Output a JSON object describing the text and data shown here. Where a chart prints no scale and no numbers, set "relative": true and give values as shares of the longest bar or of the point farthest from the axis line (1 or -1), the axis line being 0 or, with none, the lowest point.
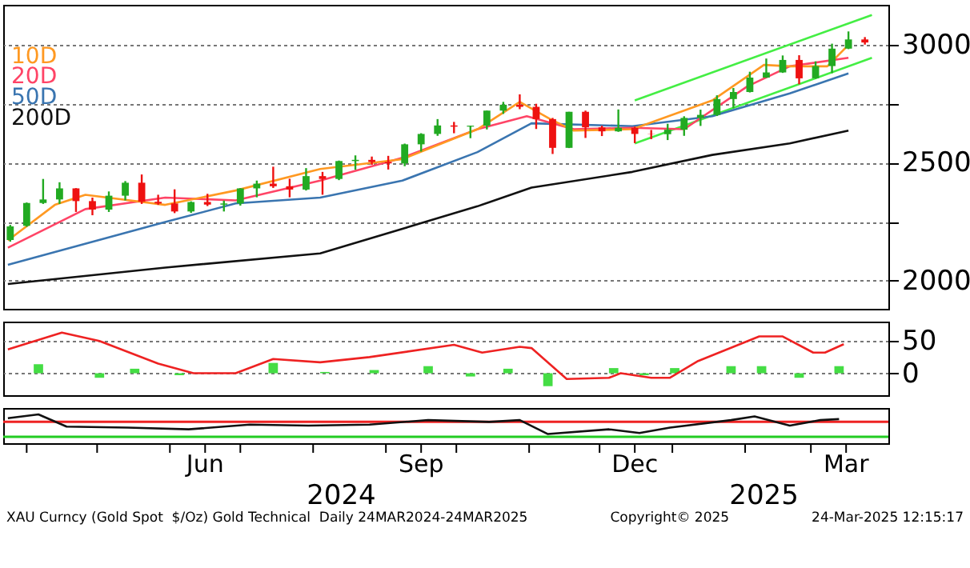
{
  "chart_data": [
    {
      "type": "candlestick",
      "xlim": [
        "2024-03-22",
        "2025-04-03"
      ],
      "ylim": [
        1880,
        3170
      ],
      "yticks": [
        2000,
        {
          "value": 2250,
          "label": null
        },
        2500,
        {
          "value": 2750,
          "label": null
        },
        3000
      ],
      "grid": "y",
      "tick_labels": "y",
      "x": [
        "2024-03-25",
        "2024-04-01",
        "2024-04-08",
        "2024-04-15",
        "2024-04-22",
        "2024-04-29",
        "2024-05-06",
        "2024-05-13",
        "2024-05-20",
        "2024-05-27",
        "2024-06-03",
        "2024-06-10",
        "2024-06-17",
        "2024-06-24",
        "2024-07-01",
        "2024-07-08",
        "2024-07-15",
        "2024-07-22",
        "2024-07-29",
        "2024-08-05",
        "2024-08-12",
        "2024-08-19",
        "2024-08-26",
        "2024-09-02",
        "2024-09-09",
        "2024-09-16",
        "2024-09-23",
        "2024-09-30",
        "2024-10-07",
        "2024-10-14",
        "2024-10-21",
        "2024-10-28",
        "2024-11-04",
        "2024-11-11",
        "2024-11-18",
        "2024-11-25",
        "2024-12-02",
        "2024-12-09",
        "2024-12-16",
        "2024-12-23",
        "2024-12-30",
        "2025-01-06",
        "2025-01-13",
        "2025-01-20",
        "2025-01-27",
        "2025-02-03",
        "2025-02-10",
        "2025-02-17",
        "2025-02-24",
        "2025-03-03",
        "2025-03-10",
        "2025-03-17",
        "2025-03-24"
      ],
      "ohlc": [
        [
          2172,
          2236,
          2165,
          2230
        ],
        [
          2232,
          2331,
          2228,
          2329
        ],
        [
          2329,
          2431,
          2325,
          2344
        ],
        [
          2344,
          2417,
          2325,
          2391
        ],
        [
          2391,
          2392,
          2291,
          2337
        ],
        [
          2337,
          2352,
          2277,
          2301
        ],
        [
          2301,
          2378,
          2291,
          2360
        ],
        [
          2360,
          2422,
          2340,
          2415
        ],
        [
          2415,
          2450,
          2325,
          2334
        ],
        [
          2334,
          2364,
          2321,
          2327
        ],
        [
          2327,
          2387,
          2286,
          2293
        ],
        [
          2293,
          2336,
          2287,
          2333
        ],
        [
          2333,
          2368,
          2316,
          2322
        ],
        [
          2322,
          2339,
          2293,
          2327
        ],
        [
          2327,
          2392,
          2318,
          2391
        ],
        [
          2391,
          2424,
          2353,
          2411
        ],
        [
          2411,
          2483,
          2393,
          2400
        ],
        [
          2400,
          2432,
          2353,
          2386
        ],
        [
          2386,
          2477,
          2382,
          2443
        ],
        [
          2443,
          2461,
          2364,
          2431
        ],
        [
          2431,
          2509,
          2426,
          2507
        ],
        [
          2507,
          2531,
          2470,
          2512
        ],
        [
          2512,
          2526,
          2491,
          2503
        ],
        [
          2503,
          2529,
          2471,
          2497
        ],
        [
          2497,
          2581,
          2485,
          2578
        ],
        [
          2578,
          2625,
          2547,
          2622
        ],
        [
          2622,
          2685,
          2614,
          2658
        ],
        [
          2658,
          2673,
          2625,
          2653
        ],
        [
          2653,
          2657,
          2604,
          2657
        ],
        [
          2657,
          2721,
          2641,
          2721
        ],
        [
          2721,
          2758,
          2707,
          2746
        ],
        [
          2746,
          2790,
          2727,
          2737
        ],
        [
          2737,
          2750,
          2643,
          2685
        ],
        [
          2685,
          2690,
          2537,
          2563
        ],
        [
          2563,
          2716,
          2562,
          2716
        ],
        [
          2716,
          2721,
          2605,
          2650
        ],
        [
          2650,
          2657,
          2613,
          2633
        ],
        [
          2633,
          2726,
          2631,
          2648
        ],
        [
          2648,
          2653,
          2583,
          2622
        ],
        [
          2622,
          2639,
          2600,
          2621
        ],
        [
          2621,
          2665,
          2596,
          2640
        ],
        [
          2640,
          2697,
          2614,
          2690
        ],
        [
          2690,
          2725,
          2656,
          2703
        ],
        [
          2703,
          2786,
          2698,
          2770
        ],
        [
          2770,
          2817,
          2731,
          2800
        ],
        [
          2800,
          2886,
          2798,
          2861
        ],
        [
          2861,
          2942,
          2860,
          2883
        ],
        [
          2883,
          2955,
          2881,
          2936
        ],
        [
          2936,
          2956,
          2833,
          2858
        ],
        [
          2858,
          2930,
          2856,
          2910
        ],
        [
          2910,
          3005,
          2880,
          2984
        ],
        [
          2984,
          3057,
          2982,
          3023
        ],
        [
          3023,
          3033,
          3001,
          3010
        ]
      ],
      "series": [
        {
          "type": "line",
          "color": "#44ee44",
          "x": [
            "2024-12-16",
            "2025-03-27"
          ],
          "values": [
            2764,
            3127
          ]
        },
        {
          "type": "line",
          "color": "#44ee44",
          "x": [
            "2024-12-16",
            "2025-03-27"
          ],
          "values": [
            2582,
            2945
          ]
        },
        {
          "type": "line",
          "name": "200D",
          "color": "#111111",
          "x": [
            "2024-03-24",
            "2024-05-30",
            "2024-08-04",
            "2024-10-10",
            "2024-11-02",
            "2024-12-15",
            "2025-01-18",
            "2025-02-20",
            "2025-03-17"
          ],
          "values": [
            1985,
            2055,
            2115,
            2315,
            2394,
            2461,
            2533,
            2582,
            2636
          ]
        },
        {
          "type": "line",
          "name": "50D",
          "color": "#3a75b0",
          "x": [
            "2024-03-24",
            "2024-05-30",
            "2024-06-29",
            "2024-08-04",
            "2024-09-08",
            "2024-10-10",
            "2024-11-02",
            "2024-12-15",
            "2025-01-18",
            "2025-02-20",
            "2025-03-17"
          ],
          "values": [
            2067,
            2248,
            2327,
            2352,
            2424,
            2545,
            2667,
            2655,
            2697,
            2794,
            2879
          ]
        },
        {
          "type": "line",
          "name": "20D",
          "color": "#ff4466",
          "x": [
            "2024-03-24",
            "2024-04-26",
            "2024-05-30",
            "2024-06-29",
            "2024-08-04",
            "2024-09-08",
            "2024-10-10",
            "2024-10-31",
            "2024-11-20",
            "2024-12-15",
            "2025-01-06",
            "2025-02-02",
            "2025-02-20",
            "2025-03-17"
          ],
          "values": [
            2139,
            2303,
            2352,
            2340,
            2424,
            2521,
            2642,
            2697,
            2642,
            2648,
            2642,
            2824,
            2909,
            2945
          ]
        },
        {
          "type": "line",
          "name": "10D",
          "color": "#ff9922",
          "x": [
            "2024-03-24",
            "2024-04-13",
            "2024-04-26",
            "2024-05-30",
            "2024-06-29",
            "2024-08-04",
            "2024-09-08",
            "2024-10-10",
            "2024-10-28",
            "2024-11-10",
            "2024-11-20",
            "2024-12-15",
            "2025-01-18",
            "2025-02-09",
            "2025-02-20",
            "2025-03-08",
            "2025-03-17"
          ],
          "values": [
            2170,
            2321,
            2364,
            2321,
            2382,
            2473,
            2515,
            2642,
            2758,
            2685,
            2636,
            2642,
            2764,
            2915,
            2909,
            2909,
            3000
          ]
        }
      ]
    },
    {
      "type": "line",
      "xlim": [
        "2024-03-22",
        "2025-04-03"
      ],
      "ylim": [
        -34,
        80
      ],
      "yticks": [
        0,
        50
      ],
      "grid": "y",
      "tick_labels": "y",
      "series": [
        {
          "type": "bar",
          "color": "#44dd44",
          "x": [
            "2024-04-06",
            "2024-05-02",
            "2024-05-17",
            "2024-06-05",
            "2024-06-25",
            "2024-07-15",
            "2024-08-06",
            "2024-08-27",
            "2024-09-19",
            "2024-10-07",
            "2024-10-23",
            "2024-11-09",
            "2024-11-25",
            "2024-12-07",
            "2024-12-20",
            "2025-01-02",
            "2025-01-26",
            "2025-02-08",
            "2025-02-24",
            "2025-03-13"
          ],
          "values": [
            14,
            -7,
            7,
            -3,
            null,
            16,
            2,
            5,
            11,
            -5,
            7,
            -20,
            null,
            8,
            -3,
            8,
            11,
            11,
            -7,
            11
          ]
        },
        {
          "type": "line",
          "color": "#ee2222",
          "x": [
            "2024-03-24",
            "2024-04-16",
            "2024-05-02",
            "2024-05-27",
            "2024-06-11",
            "2024-06-29",
            "2024-07-15",
            "2024-08-04",
            "2024-08-25",
            "2024-09-30",
            "2024-10-12",
            "2024-10-28",
            "2024-11-02",
            "2024-11-17",
            "2024-12-05",
            "2024-12-10",
            "2024-12-23",
            "2024-12-31",
            "2025-01-12",
            "2025-02-07",
            "2025-02-17",
            "2025-03-02",
            "2025-03-07",
            "2025-03-15"
          ],
          "values": [
            37,
            63,
            50,
            15,
            0,
            0,
            22,
            17,
            25,
            44,
            32,
            41,
            39,
            -9,
            -7,
            0,
            -7,
            -7,
            19,
            57,
            57,
            32,
            32,
            45
          ]
        }
      ]
    },
    {
      "type": "line",
      "relative": true,
      "xlim": [
        "2024-03-22",
        "2025-04-03"
      ],
      "xticks": [
        {
          "value": "2024-04-01",
          "label": null
        },
        {
          "value": "2024-05-01",
          "label": null
        },
        {
          "value": "2024-06-01",
          "label": null
        },
        {
          "value": "2024-06-16",
          "label": "Jun"
        },
        {
          "value": "2024-07-01",
          "label": null
        },
        {
          "value": "2024-08-01",
          "label": null
        },
        {
          "value": "2024-09-01",
          "label": null
        },
        {
          "value": "2024-09-16",
          "label": "Sep"
        },
        {
          "value": "2024-10-01",
          "label": null
        },
        {
          "value": "2024-11-01",
          "label": null
        },
        {
          "value": "2024-12-01",
          "label": null
        },
        {
          "value": "2024-12-16",
          "label": "Dec"
        },
        {
          "value": "2025-01-01",
          "label": null
        },
        {
          "value": "2025-02-01",
          "label": null
        },
        {
          "value": "2025-03-01",
          "label": null
        },
        {
          "value": "2025-03-16",
          "label": "Mar"
        }
      ],
      "x2lim": [
        "2024-03-22",
        "2025-04-03"
      ],
      "x2ticks": [
        {
          "value": "2024-08-13",
          "label": "2024"
        },
        {
          "value": "2025-02-09",
          "label": "2025"
        }
      ],
      "tick_labels": "x",
      "series": [
        {
          "type": "line",
          "color": "#111111",
          "x": [
            "2024-03-24",
            "2024-04-06",
            "2024-04-18",
            "2024-05-14",
            "2024-06-09",
            "2024-07-05",
            "2024-07-30",
            "2024-08-25",
            "2024-09-19",
            "2024-10-15",
            "2024-10-28",
            "2024-11-09",
            "2024-12-05",
            "2024-12-18",
            "2024-12-31",
            "2025-01-26",
            "2025-02-05",
            "2025-02-20",
            "2025-03-05",
            "2025-03-13"
          ],
          "values": [
            0.81,
            1,
            0.38,
            0.33,
            0.24,
            0.48,
            0.43,
            0.48,
            0.71,
            0.62,
            0.71,
            0,
            0.24,
            0.05,
            0.33,
            0.71,
            0.9,
            0.43,
            0.71,
            0.76
          ]
        }
      ],
      "ref_lines": [
        {
          "axis": "y",
          "value": 0.62,
          "color": "#ee2222"
        },
        {
          "axis": "y",
          "value": -0.14,
          "color": "#22cc22"
        }
      ],
      "annotations": [
        "XAU Curncy (Gold Spot  $/Oz) Gold Technical  Daily 24MAR2024-24MAR2025",
        "Copyright© 2025",
        "24-Mar-2025 12:15:17"
      ]
    }
  ]
}
